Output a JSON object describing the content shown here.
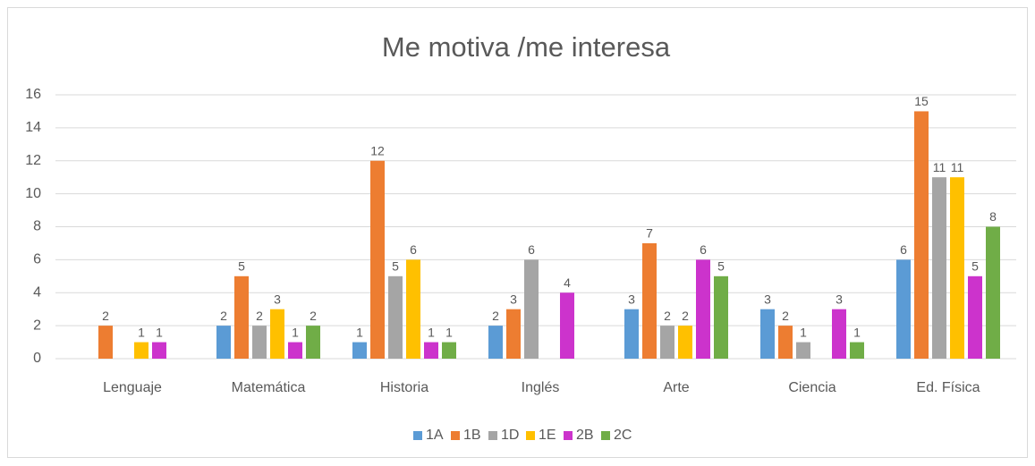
{
  "chart_data": {
    "type": "bar",
    "title": "Me motiva /me interesa",
    "categories": [
      "Lenguaje",
      "Matemática",
      "Historia",
      "Inglés",
      "Arte",
      "Ciencia",
      "Ed. Física"
    ],
    "series": [
      {
        "name": "1A",
        "color": "#5b9bd5",
        "values": [
          null,
          2,
          1,
          2,
          3,
          3,
          6
        ]
      },
      {
        "name": "1B",
        "color": "#ed7d31",
        "values": [
          2,
          5,
          12,
          3,
          7,
          2,
          15
        ]
      },
      {
        "name": "1D",
        "color": "#a5a5a5",
        "values": [
          null,
          2,
          5,
          6,
          2,
          1,
          11
        ]
      },
      {
        "name": "1E",
        "color": "#ffc000",
        "values": [
          1,
          3,
          6,
          null,
          2,
          null,
          11
        ]
      },
      {
        "name": "2B",
        "color": "#cc33cc",
        "values": [
          1,
          1,
          1,
          4,
          6,
          3,
          5
        ]
      },
      {
        "name": "2C",
        "color": "#70ad47",
        "values": [
          null,
          2,
          1,
          null,
          5,
          1,
          8
        ]
      }
    ],
    "ylim": [
      0,
      16
    ],
    "yticks": [
      0,
      2,
      4,
      6,
      8,
      10,
      12,
      14,
      16
    ],
    "grid": true,
    "legend": "bottom"
  }
}
